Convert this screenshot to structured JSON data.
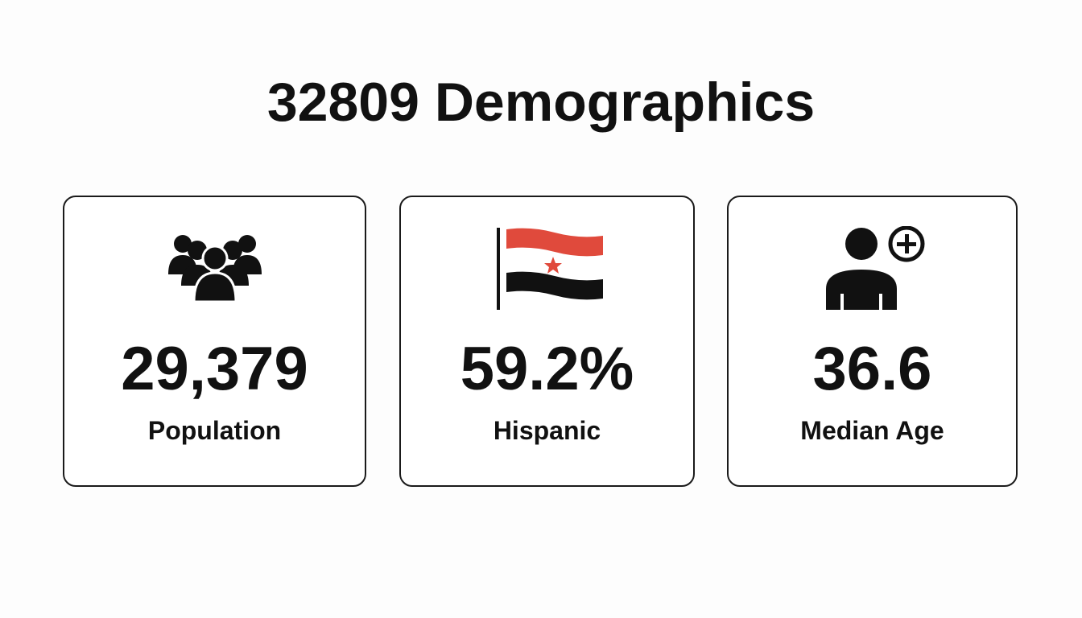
{
  "header": {
    "title": "32809 Demographics"
  },
  "cards": [
    {
      "value": "29,379",
      "label": "Population"
    },
    {
      "value": "59.2%",
      "label": "Hispanic"
    },
    {
      "value": "36.6",
      "label": "Median Age"
    }
  ]
}
